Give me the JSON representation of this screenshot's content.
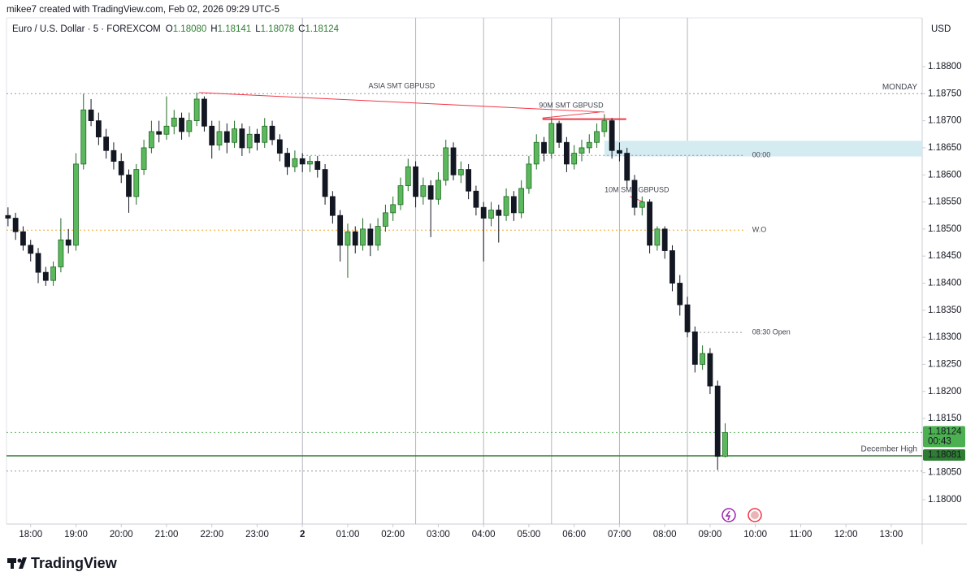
{
  "header": "mikee7 created with TradingView.com, Feb 02, 2026 09:29 UTC-5",
  "brand": "TradingView",
  "chart_data": {
    "type": "candlestick",
    "title": "Euro / U.S. Dollar · 5 · FOREXCOM",
    "ohlc_legend": [
      {
        "key": "O",
        "text": "1.18080"
      },
      {
        "key": "H",
        "text": "1.18141"
      },
      {
        "key": "L",
        "text": "1.18078"
      },
      {
        "key": "C",
        "text": "1.18124"
      }
    ],
    "currency": "USD",
    "up_color": "#5cb85c",
    "up_border": "#1e6b22",
    "down_color": "#131722",
    "x": [
      1050,
      1060,
      1070,
      1080,
      1090,
      1100,
      1110,
      1120,
      1130,
      1140,
      1150,
      1160,
      1170,
      1180,
      1190,
      1200,
      1210,
      1220,
      1230,
      1240,
      1250,
      1260,
      1270,
      1280,
      1290,
      1300,
      1310,
      1320,
      1330,
      1340,
      1350,
      1360,
      1370,
      1380,
      1390,
      1400,
      1410,
      1420,
      1430,
      1440,
      1450,
      1460,
      1470,
      1480,
      1490,
      1500,
      1510,
      1520,
      1530,
      1540,
      1550,
      1560,
      1570,
      1580,
      1590,
      1600,
      1610,
      1620,
      1630,
      1640,
      1650,
      1660,
      1670,
      1680,
      1690,
      1700,
      1710,
      1720,
      1730,
      1740,
      1750,
      1760,
      1770,
      1780,
      1790,
      1800,
      1810,
      1820,
      1830,
      1840,
      1850,
      1860,
      1870,
      1880,
      1890,
      1900,
      1910,
      1920,
      1930,
      1940,
      1950,
      1960,
      1970,
      1980,
      1990,
      2000
    ],
    "open": [
      1.18525,
      1.1852,
      1.18495,
      1.1847,
      1.18455,
      1.1842,
      1.18405,
      1.1843,
      1.1848,
      1.1847,
      1.1862,
      1.1872,
      1.187,
      1.1867,
      1.18645,
      1.18625,
      1.186,
      1.1856,
      1.1861,
      1.1865,
      1.1868,
      1.18675,
      1.1869,
      1.18705,
      1.1868,
      1.187,
      1.1874,
      1.1869,
      1.18655,
      1.1868,
      1.1866,
      1.18685,
      1.1865,
      1.18675,
      1.1866,
      1.1869,
      1.18665,
      1.1864,
      1.18615,
      1.1863,
      1.1862,
      1.18625,
      1.1861,
      1.1856,
      1.18525,
      1.1847,
      1.18495,
      1.1847,
      1.185,
      1.1847,
      1.18505,
      1.1853,
      1.18545,
      1.1858,
      1.18615,
      1.1856,
      1.1858,
      1.18555,
      1.1859,
      1.1865,
      1.186,
      1.1861,
      1.1857,
      1.1854,
      1.1852,
      1.18535,
      1.18525,
      1.1856,
      1.1853,
      1.18575,
      1.1862,
      1.1866,
      1.1864,
      1.18695,
      1.1866,
      1.1862,
      1.1864,
      1.1865,
      1.1866,
      1.1868,
      1.187,
      1.18645,
      1.1864,
      1.1859,
      1.1854,
      1.1855,
      1.1847,
      1.185,
      1.1846,
      1.184,
      1.1836,
      1.1831,
      1.1825,
      1.1827,
      1.1821,
      1.1808
    ],
    "high": [
      1.1854,
      1.1853,
      1.18505,
      1.1848,
      1.18465,
      1.1843,
      1.1844,
      1.1852,
      1.185,
      1.1864,
      1.1875,
      1.1874,
      1.18715,
      1.18685,
      1.1866,
      1.1864,
      1.1861,
      1.1862,
      1.18665,
      1.187,
      1.187,
      1.18745,
      1.1872,
      1.18715,
      1.18715,
      1.18752,
      1.18745,
      1.187,
      1.187,
      1.18695,
      1.187,
      1.18695,
      1.1869,
      1.18685,
      1.18705,
      1.187,
      1.18675,
      1.1865,
      1.18645,
      1.1864,
      1.18635,
      1.18635,
      1.1862,
      1.1857,
      1.18535,
      1.1851,
      1.18505,
      1.1852,
      1.1851,
      1.1852,
      1.18545,
      1.1856,
      1.18595,
      1.1863,
      1.18625,
      1.18595,
      1.1859,
      1.18605,
      1.18665,
      1.1866,
      1.18625,
      1.1862,
      1.1858,
      1.1855,
      1.1855,
      1.18545,
      1.18575,
      1.1857,
      1.1859,
      1.18635,
      1.18675,
      1.1867,
      1.18705,
      1.187,
      1.1867,
      1.18655,
      1.18665,
      1.18675,
      1.18695,
      1.18712,
      1.18705,
      1.1866,
      1.1865,
      1.186,
      1.1856,
      1.18555,
      1.18505,
      1.18505,
      1.1847,
      1.18415,
      1.18375,
      1.1832,
      1.18285,
      1.1828,
      1.1822,
      1.18141
    ],
    "low": [
      1.18505,
      1.1848,
      1.1846,
      1.1844,
      1.184,
      1.18395,
      1.18395,
      1.1842,
      1.18455,
      1.1846,
      1.1861,
      1.1869,
      1.18655,
      1.1863,
      1.1861,
      1.18585,
      1.1853,
      1.18545,
      1.186,
      1.1864,
      1.1866,
      1.18665,
      1.18675,
      1.18665,
      1.1867,
      1.1869,
      1.1868,
      1.1863,
      1.18645,
      1.1864,
      1.1865,
      1.18635,
      1.1864,
      1.18645,
      1.1865,
      1.18655,
      1.18625,
      1.186,
      1.18605,
      1.18605,
      1.18605,
      1.18595,
      1.18545,
      1.1851,
      1.1844,
      1.1841,
      1.18455,
      1.1846,
      1.1845,
      1.1846,
      1.18495,
      1.18515,
      1.18535,
      1.1857,
      1.1854,
      1.18545,
      1.18485,
      1.18545,
      1.1858,
      1.1859,
      1.18585,
      1.18555,
      1.18525,
      1.1844,
      1.18505,
      1.18475,
      1.18515,
      1.18515,
      1.1852,
      1.18565,
      1.1861,
      1.18625,
      1.1863,
      1.1865,
      1.18605,
      1.1861,
      1.18625,
      1.1864,
      1.1865,
      1.1867,
      1.1863,
      1.18625,
      1.18575,
      1.18525,
      1.18525,
      1.18455,
      1.1846,
      1.18445,
      1.18385,
      1.1834,
      1.183,
      1.18235,
      1.1824,
      1.18195,
      1.18055,
      1.18078
    ],
    "close": [
      1.1852,
      1.18495,
      1.1847,
      1.18455,
      1.1842,
      1.18405,
      1.1843,
      1.1848,
      1.1847,
      1.1862,
      1.1872,
      1.187,
      1.1867,
      1.18645,
      1.18625,
      1.186,
      1.1856,
      1.1861,
      1.1865,
      1.1868,
      1.18675,
      1.1869,
      1.18705,
      1.1868,
      1.187,
      1.1874,
      1.1869,
      1.18655,
      1.1868,
      1.1866,
      1.18685,
      1.1865,
      1.18675,
      1.1866,
      1.1869,
      1.18665,
      1.1864,
      1.18615,
      1.1863,
      1.1862,
      1.18625,
      1.1861,
      1.1856,
      1.18525,
      1.1847,
      1.18495,
      1.1847,
      1.185,
      1.1847,
      1.18505,
      1.1853,
      1.18545,
      1.1858,
      1.18615,
      1.1856,
      1.1858,
      1.18555,
      1.1859,
      1.1865,
      1.186,
      1.1861,
      1.1857,
      1.1854,
      1.1852,
      1.18535,
      1.18525,
      1.1856,
      1.1853,
      1.18575,
      1.1862,
      1.1866,
      1.1864,
      1.18695,
      1.1866,
      1.1862,
      1.1864,
      1.1865,
      1.1866,
      1.1868,
      1.187,
      1.18645,
      1.1864,
      1.1859,
      1.1854,
      1.1855,
      1.1847,
      1.185,
      1.1846,
      1.184,
      1.1836,
      1.1831,
      1.1825,
      1.1827,
      1.1821,
      1.1808,
      1.18124
    ],
    "xlim": [
      1048,
      2261
    ],
    "ylim": [
      1.17955,
      1.1889
    ],
    "xticks": [
      {
        "value": 1080,
        "label": "18:00"
      },
      {
        "value": 1140,
        "label": "19:00"
      },
      {
        "value": 1200,
        "label": "20:00"
      },
      {
        "value": 1260,
        "label": "21:00"
      },
      {
        "value": 1320,
        "label": "22:00"
      },
      {
        "value": 1380,
        "label": "23:00"
      },
      {
        "value": 1440,
        "label": "2"
      },
      {
        "value": 1500,
        "label": "01:00"
      },
      {
        "value": 1560,
        "label": "02:00"
      },
      {
        "value": 1620,
        "label": "03:00"
      },
      {
        "value": 1680,
        "label": "04:00"
      },
      {
        "value": 1740,
        "label": "05:00"
      },
      {
        "value": 1800,
        "label": "06:00"
      },
      {
        "value": 1860,
        "label": "07:00"
      },
      {
        "value": 1920,
        "label": "08:00"
      },
      {
        "value": 1980,
        "label": "09:00"
      },
      {
        "value": 2040,
        "label": "10:00"
      },
      {
        "value": 2100,
        "label": "11:00"
      },
      {
        "value": 2160,
        "label": "12:00"
      },
      {
        "value": 2220,
        "label": "13:00"
      }
    ],
    "yticks": [
      {
        "value": 1.18,
        "label": "1.18000"
      },
      {
        "value": 1.1805,
        "label": "1.18050"
      },
      {
        "value": 1.1815,
        "label": "1.18150"
      },
      {
        "value": 1.182,
        "label": "1.18200"
      },
      {
        "value": 1.1825,
        "label": "1.18250"
      },
      {
        "value": 1.183,
        "label": "1.18300"
      },
      {
        "value": 1.1835,
        "label": "1.18350"
      },
      {
        "value": 1.184,
        "label": "1.18400"
      },
      {
        "value": 1.1845,
        "label": "1.18450"
      },
      {
        "value": 1.185,
        "label": "1.18500"
      },
      {
        "value": 1.1855,
        "label": "1.18550"
      },
      {
        "value": 1.186,
        "label": "1.18600"
      },
      {
        "value": 1.1865,
        "label": "1.18650"
      },
      {
        "value": 1.187,
        "label": "1.18700"
      },
      {
        "value": 1.1875,
        "label": "1.18750"
      },
      {
        "value": 1.188,
        "label": "1.18800"
      }
    ],
    "session_lines": [
      1440,
      1590,
      1680,
      1770,
      1860,
      1950
    ],
    "zone": {
      "from": 1840,
      "top": 1.18663,
      "bottom": 1.18634,
      "color": "#d3ebf1"
    },
    "levels": [
      {
        "label": "MONDAY",
        "price": 1.1875,
        "color": "#9598a1",
        "dash": "2 3"
      },
      {
        "label": "00:00",
        "price": 1.18636,
        "from": 1440,
        "to": 2025,
        "color": "#9598a1",
        "dash": "2 3"
      },
      {
        "label": "W.O",
        "price": 1.18498,
        "to": 2025,
        "color": "#f5a623",
        "dash": "2 3"
      },
      {
        "label": "08:30 Open",
        "price": 1.18309,
        "from": 1950,
        "to": 2025,
        "color": "#9598a1",
        "dash": "2 3"
      },
      {
        "price": 1.18124,
        "color": "#4caf50",
        "dash": "2 3",
        "axis_label": "1.18124",
        "axis_sub": "00:43"
      },
      {
        "label": "December High",
        "price": 1.18081,
        "color": "#2e7d32",
        "dash": "none",
        "axis_label": "1.18081"
      },
      {
        "price": 1.18053,
        "color": "#9598a1",
        "dash": "2 3"
      }
    ],
    "annotations": [
      {
        "label": "ASIA SMT GBPUSD",
        "color": "#f23645",
        "lines": [
          {
            "x": [
              1303,
              1840
            ],
            "y": [
              1.18752,
              1.18716
            ]
          }
        ]
      },
      {
        "label": "90M SMT GBPUSD",
        "color": "#f23645",
        "lines": [
          {
            "x": [
              1758,
              1834
            ],
            "y": [
              1.18705,
              1.18716
            ]
          },
          {
            "x": [
              1758,
              1869
            ],
            "y": [
              1.18703,
              1.18703
            ]
          }
        ]
      },
      {
        "label": "10M SMT GBPUSD",
        "color": "#f23645",
        "lines": [
          {
            "x": [
              1874,
              1892
            ],
            "y": [
              1.1856,
              1.1855
            ]
          }
        ]
      }
    ]
  }
}
